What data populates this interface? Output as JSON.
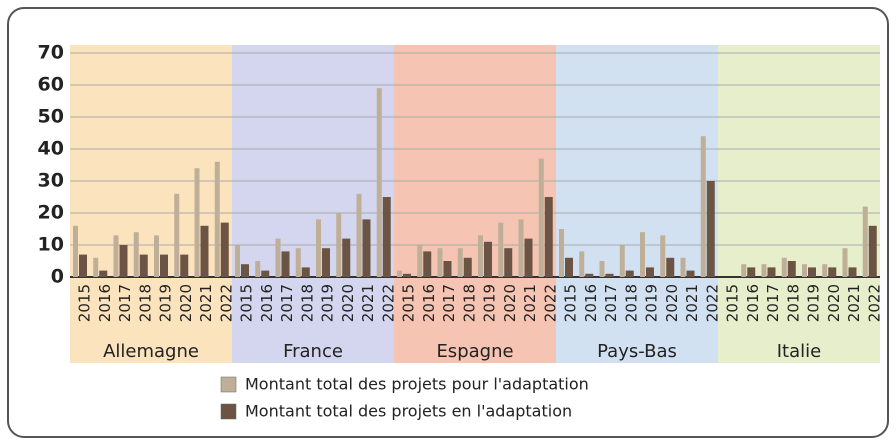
{
  "chart_data": {
    "type": "bar",
    "series": [
      {
        "name": "Montant total des projets pour l'adaptation",
        "color": "#bfae98"
      },
      {
        "name": "Montant total des projets en l'adaptation",
        "color": "#6b5443"
      }
    ],
    "groups": [
      {
        "name": "Allemagne",
        "background": "#fbe3bd",
        "categories": [
          "2015",
          "2016",
          "2017",
          "2018",
          "2019",
          "2020",
          "2021",
          "2022"
        ],
        "values": [
          [
            16,
            6,
            13,
            14,
            13,
            26,
            34,
            36
          ],
          [
            7,
            2,
            10,
            7,
            7,
            7,
            16,
            17
          ]
        ]
      },
      {
        "name": "France",
        "background": "#d3d6ee",
        "categories": [
          "2015",
          "2016",
          "2017",
          "2018",
          "2019",
          "2020",
          "2021",
          "2022"
        ],
        "values": [
          [
            10,
            5,
            12,
            9,
            18,
            20,
            26,
            59
          ],
          [
            4,
            2,
            8,
            3,
            9,
            12,
            18,
            25
          ]
        ]
      },
      {
        "name": "Espagne",
        "background": "#f6c4b3",
        "categories": [
          "2015",
          "2016",
          "2017",
          "2018",
          "2019",
          "2020",
          "2021",
          "2022"
        ],
        "values": [
          [
            2,
            10,
            9,
            9,
            13,
            17,
            18,
            37
          ],
          [
            1,
            8,
            5,
            6,
            11,
            9,
            12,
            25
          ]
        ]
      },
      {
        "name": "Pays-Bas",
        "background": "#d2e1f1",
        "categories": [
          "2015",
          "2016",
          "2017",
          "2018",
          "2019",
          "2020",
          "2021",
          "2022"
        ],
        "values": [
          [
            15,
            8,
            5,
            10,
            14,
            13,
            6,
            44
          ],
          [
            6,
            1,
            1,
            2,
            3,
            6,
            2,
            30
          ]
        ]
      },
      {
        "name": "Italie",
        "background": "#e7eecb",
        "categories": [
          "2015",
          "2016",
          "2017",
          "2018",
          "2019",
          "2020",
          "2021",
          "2022"
        ],
        "values": [
          [
            0,
            4,
            4,
            6,
            4,
            4,
            9,
            22
          ],
          [
            0,
            3,
            3,
            5,
            3,
            3,
            3,
            16
          ]
        ]
      }
    ],
    "ylim": [
      0,
      70
    ],
    "yticks": [
      0,
      10,
      20,
      30,
      40,
      50,
      60,
      70
    ],
    "grid": true
  }
}
